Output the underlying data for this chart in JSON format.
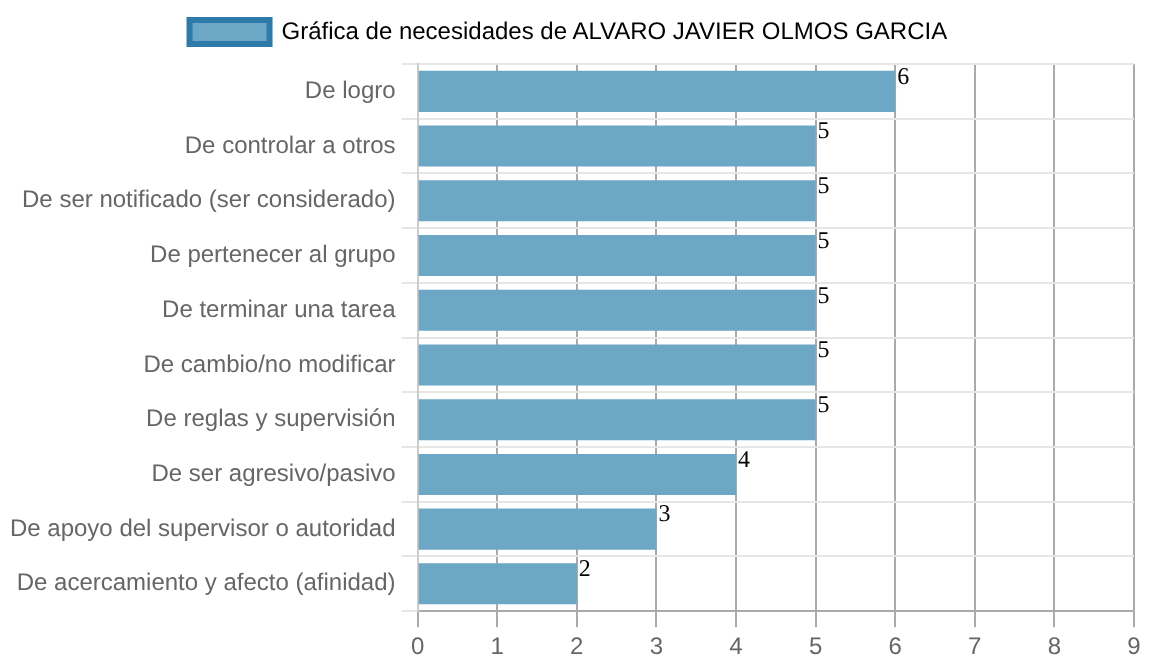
{
  "chart_data": {
    "type": "bar",
    "orientation": "horizontal",
    "categories": [
      "De logro",
      "De controlar a otros",
      "De ser notificado (ser considerado)",
      "De pertenecer al grupo",
      "De terminar una tarea",
      "De cambio/no modificar",
      "De reglas y supervisión",
      "De ser agresivo/pasivo",
      "De apoyo del supervisor o autoridad",
      "De acercamiento y afecto (afinidad)"
    ],
    "series": [
      {
        "name": "Gráfica de necesidades de ALVARO JAVIER OLMOS GARCIA",
        "color": "#6ca7c6",
        "values": [
          6,
          5,
          5,
          5,
          5,
          5,
          5,
          4,
          3,
          2
        ]
      }
    ],
    "xlim": [
      0,
      9
    ],
    "xticks": [
      0,
      1,
      2,
      3,
      4,
      5,
      6,
      7,
      8,
      9
    ],
    "grid": true,
    "legend": "top",
    "data_labels": true
  }
}
